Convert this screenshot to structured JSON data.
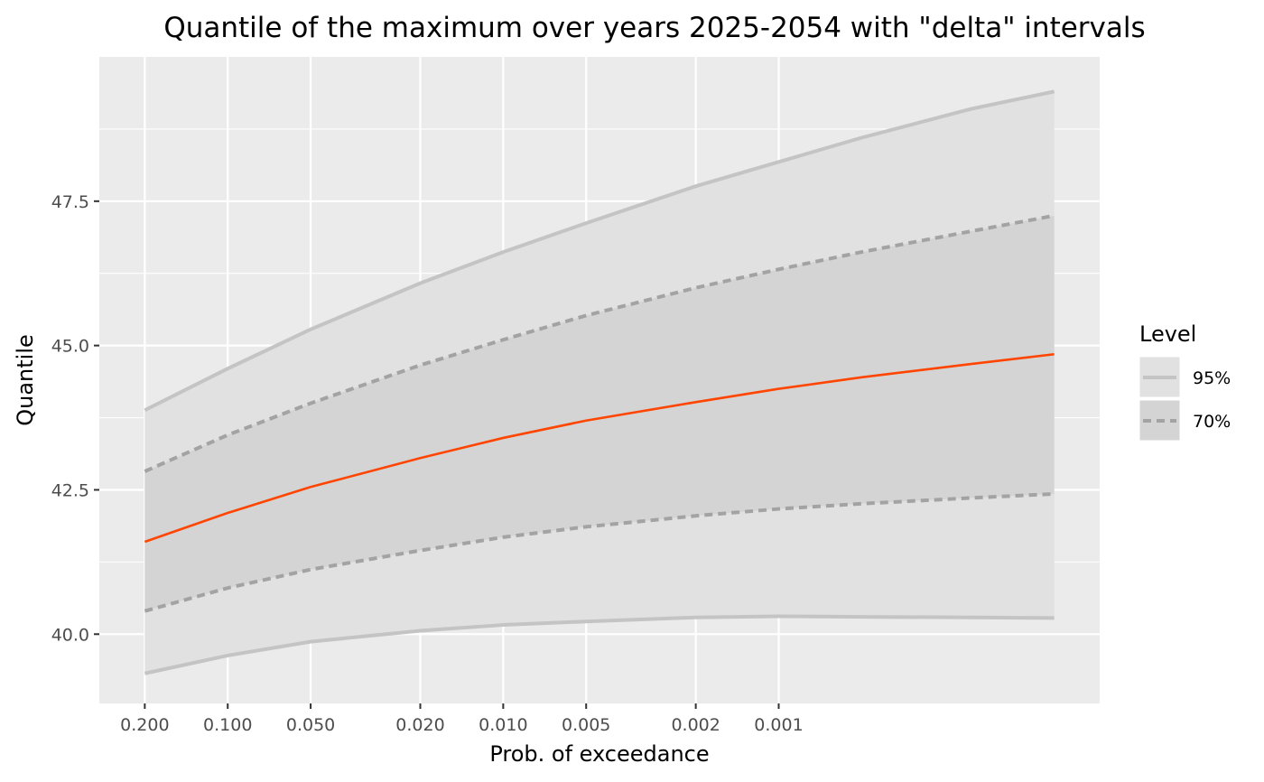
{
  "chart_data": {
    "type": "line",
    "title": "Quantile of the maximum over years 2025-2054 with \"delta\" intervals",
    "xlabel": "Prob. of exceedance",
    "ylabel": "Quantile",
    "x_scale": "log-return-period",
    "x_ticks": [
      0.2,
      0.1,
      0.05,
      0.02,
      0.01,
      0.005,
      0.002,
      0.001
    ],
    "x_tick_labels": [
      "0.200",
      "0.100",
      "0.050",
      "0.020",
      "0.010",
      "0.005",
      "0.002",
      "0.001"
    ],
    "xlim": [
      0.2,
      0.0001
    ],
    "y_ticks": [
      40.0,
      42.5,
      45.0,
      47.5
    ],
    "y_tick_labels": [
      "40.0",
      "42.5",
      "45.0",
      "47.5"
    ],
    "ylim": [
      38.8,
      50.0
    ],
    "grid": true,
    "legend_position": "right",
    "x": [
      0.2,
      0.1,
      0.05,
      0.02,
      0.01,
      0.005,
      0.002,
      0.001,
      0.0005,
      0.0002,
      0.0001
    ],
    "series": [
      {
        "role": "estimate",
        "values": [
          41.6,
          42.1,
          42.55,
          43.05,
          43.4,
          43.7,
          44.02,
          44.25,
          44.45,
          44.68,
          44.85
        ]
      },
      {
        "role": "upper",
        "level": "95%",
        "line_style": "solid",
        "values": [
          43.88,
          44.6,
          45.28,
          46.08,
          46.62,
          47.12,
          47.76,
          48.18,
          48.6,
          49.1,
          49.4
        ]
      },
      {
        "role": "lower",
        "level": "95%",
        "line_style": "solid",
        "values": [
          39.32,
          39.63,
          39.87,
          40.06,
          40.16,
          40.22,
          40.29,
          40.31,
          40.3,
          40.29,
          40.28
        ]
      },
      {
        "role": "upper",
        "level": "70%",
        "line_style": "dashed",
        "values": [
          42.82,
          43.45,
          44.0,
          44.66,
          45.1,
          45.52,
          46.0,
          46.32,
          46.62,
          46.98,
          47.25
        ]
      },
      {
        "role": "lower",
        "level": "70%",
        "line_style": "dashed",
        "values": [
          40.4,
          40.8,
          41.12,
          41.45,
          41.68,
          41.86,
          42.05,
          42.17,
          42.26,
          42.36,
          42.43
        ]
      }
    ],
    "legend": {
      "title": "Level",
      "items": [
        {
          "label": "95%",
          "line_style": "solid"
        },
        {
          "label": "70%",
          "line_style": "dashed"
        }
      ]
    },
    "colors": {
      "panel": "#ebebeb",
      "grid": "#ffffff",
      "estimate_line": "#ff4500",
      "band_95_fill": "#e1e1e1",
      "band_70_fill": "#d4d4d4",
      "line_95": "#c4c4c4",
      "line_70": "#a3a3a3"
    }
  }
}
